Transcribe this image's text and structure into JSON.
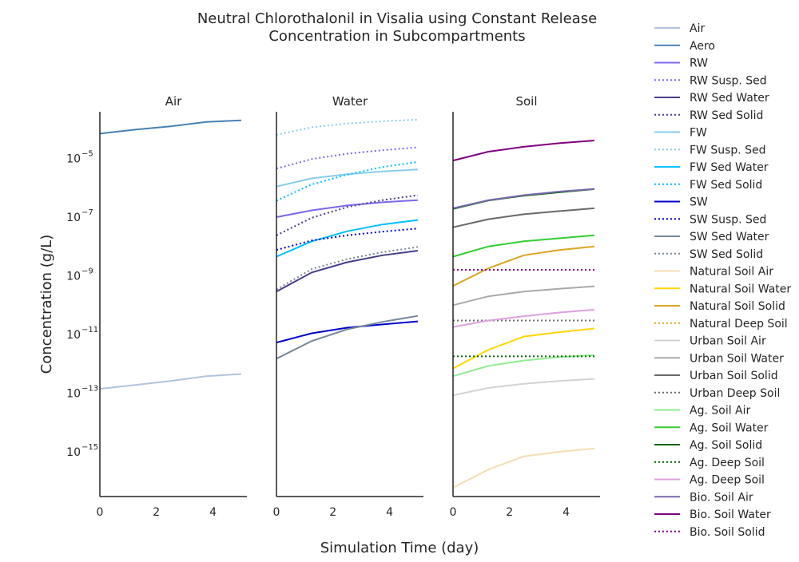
{
  "chart_data": {
    "type": "line",
    "title": "Neutral Chlorothalonil in Visalia using Constant Release\nConcentration in Subcompartments",
    "xlabel": "Simulation Time (day)",
    "ylabel": "Concentration (g/L)",
    "yscale": "log",
    "ylim": [
      3e-17,
      0.00039
    ],
    "xlim": [
      0,
      5.2
    ],
    "xticks": [
      0,
      2,
      4
    ],
    "yticks": [
      {
        "value": 1e-05,
        "base": "10",
        "exp": "−5"
      },
      {
        "value": 1e-07,
        "base": "10",
        "exp": "−7"
      },
      {
        "value": 1e-09,
        "base": "10",
        "exp": "−9"
      },
      {
        "value": 1e-11,
        "base": "10",
        "exp": "−11"
      },
      {
        "value": 1e-13,
        "base": "10",
        "exp": "−13"
      },
      {
        "value": 1e-15,
        "base": "10",
        "exp": "−15"
      }
    ],
    "x": [
      0,
      1.25,
      2.5,
      3.75,
      5
    ],
    "panels": [
      {
        "title": "Air",
        "series": [
          {
            "name": "Air",
            "color": "#b0c4de",
            "dash": "solid",
            "values": [
              1.4e-13,
              1.9e-13,
              2.6e-13,
              3.8e-13,
              4.5e-13
            ]
          },
          {
            "name": "Aero",
            "color": "#4682b4",
            "dash": "solid",
            "values": [
              7e-05,
              9.6e-05,
              0.000125,
              0.000175,
              0.0002
            ]
          }
        ]
      },
      {
        "title": "Water",
        "series": [
          {
            "name": "RW",
            "color": "#7b68ee",
            "dash": "solid",
            "values": [
              1e-07,
              1.7e-07,
              2.5e-07,
              3.2e-07,
              3.8e-07
            ]
          },
          {
            "name": "RW Susp. Sed",
            "color": "#7b68ee",
            "dash": "dot",
            "values": [
              4.5e-06,
              9.5e-06,
              1.45e-05,
              1.9e-05,
              2.4e-05
            ]
          },
          {
            "name": "RW Sed Water",
            "color": "#483d8b",
            "dash": "solid",
            "values": [
              2.9e-10,
              1.3e-09,
              2.9e-09,
              5e-09,
              7.2e-09
            ]
          },
          {
            "name": "RW Sed Solid",
            "color": "#483d8b",
            "dash": "dot",
            "values": [
              2.4e-08,
              9.5e-08,
              2.2e-07,
              3.8e-07,
              5.6e-07
            ]
          },
          {
            "name": "FW",
            "color": "#87ceeb",
            "dash": "solid",
            "values": [
              1.1e-06,
              2.1e-06,
              2.9e-06,
              3.6e-06,
              4.2e-06
            ]
          },
          {
            "name": "FW Susp. Sed",
            "color": "#87ceeb",
            "dash": "dot",
            "values": [
              6.4e-05,
              0.000115,
              0.000155,
              0.000185,
              0.00021
            ]
          },
          {
            "name": "FW Sed Water",
            "color": "#00bfff",
            "dash": "solid",
            "values": [
              4.5e-09,
              1.5e-08,
              3.3e-08,
              5.6e-08,
              8e-08
            ]
          },
          {
            "name": "FW Sed Solid",
            "color": "#00bfff",
            "dash": "dot",
            "values": [
              3.6e-07,
              1.3e-06,
              2.8e-06,
              5.1e-06,
              7.6e-06
            ]
          },
          {
            "name": "SW",
            "color": "#0000cd",
            "dash": "solid",
            "values": [
              5.3e-12,
              1.1e-11,
              1.7e-11,
              2.2e-11,
              2.8e-11
            ]
          },
          {
            "name": "SW Susp. Sed",
            "color": "#0000cd",
            "dash": "dot",
            "values": [
              7.6e-09,
              1.6e-08,
              2.4e-08,
              3.2e-08,
              4.1e-08
            ]
          },
          {
            "name": "SW Sed Water",
            "color": "#778899",
            "dash": "solid",
            "values": [
              1.5e-12,
              6e-12,
              1.5e-11,
              2.7e-11,
              4.3e-11
            ]
          },
          {
            "name": "SW Sed Solid",
            "color": "#778899",
            "dash": "dot",
            "values": [
              3.4e-10,
              1.7e-09,
              3.7e-09,
              6.4e-09,
              9.6e-09
            ]
          }
        ]
      },
      {
        "title": "Soil",
        "series": [
          {
            "name": "Natural Soil Air",
            "color": "#f5deb3",
            "dash": "solid",
            "values": [
              6e-17,
              2.5e-16,
              7e-16,
              1e-15,
              1.3e-15
            ]
          },
          {
            "name": "Natural Soil Water",
            "color": "#ffd700",
            "dash": "solid",
            "values": [
              7e-13,
              3e-12,
              8.5e-12,
              1.2e-11,
              1.6e-11
            ]
          },
          {
            "name": "Natural Soil Solid",
            "color": "#daa520",
            "dash": "solid",
            "values": [
              4.5e-10,
              1.8e-09,
              5e-09,
              7.5e-09,
              1e-08
            ]
          },
          {
            "name": "Natural Deep Soil",
            "color": "#daa520",
            "dash": "dot",
            "values": [
              1.6e-09,
              1.6e-09,
              1.6e-09,
              1.6e-09,
              1.6e-09
            ]
          },
          {
            "name": "Urban Soil Air",
            "color": "#d3d3d3",
            "dash": "solid",
            "values": [
              8.5e-14,
              1.5e-13,
              2.1e-13,
              2.6e-13,
              3.1e-13
            ]
          },
          {
            "name": "Urban Soil Water",
            "color": "#a9a9a9",
            "dash": "solid",
            "values": [
              1e-10,
              2e-10,
              2.9e-10,
              3.6e-10,
              4.4e-10
            ]
          },
          {
            "name": "Urban Soil Solid",
            "color": "#696969",
            "dash": "solid",
            "values": [
              4.5e-08,
              8.5e-08,
              1.25e-07,
              1.6e-07,
              2e-07
            ]
          },
          {
            "name": "Urban Deep Soil",
            "color": "#696969",
            "dash": "dot",
            "values": [
              3e-11,
              3e-11,
              3e-11,
              3e-11,
              3e-11
            ]
          },
          {
            "name": "Ag. Soil Air",
            "color": "#90ee90",
            "dash": "solid",
            "values": [
              3.8e-13,
              8.5e-13,
              1.3e-12,
              1.7e-12,
              2e-12
            ]
          },
          {
            "name": "Ag. Soil Water",
            "color": "#32cd32",
            "dash": "solid",
            "values": [
              4.5e-09,
              1e-08,
              1.5e-08,
              1.9e-08,
              2.4e-08
            ]
          },
          {
            "name": "Ag. Soil Solid",
            "color": "#006400",
            "dash": "solid",
            "values": [
              1.9e-07,
              3.7e-07,
              5.4e-07,
              7e-07,
              9e-07
            ]
          },
          {
            "name": "Ag. Deep Soil",
            "color": "#006400",
            "dash": "dot",
            "values": [
              1.8e-12,
              1.8e-12,
              1.8e-12,
              1.8e-12,
              1.8e-12
            ]
          },
          {
            "name": "Ag. Deep Soil",
            "color": "#dda0dd",
            "dash": "solid",
            "values": [
              1.8e-11,
              3e-11,
              4.2e-11,
              5.6e-11,
              7e-11
            ]
          },
          {
            "name": "Bio. Soil Air",
            "color": "#7b68b3",
            "dash": "solid",
            "values": [
              2e-07,
              3.8e-07,
              5.6e-07,
              7.4e-07,
              9.2e-07
            ]
          },
          {
            "name": "Bio. Soil Water",
            "color": "#800080",
            "dash": "solid",
            "values": [
              8.5e-06,
              1.7e-05,
              2.5e-05,
              3.3e-05,
              4.1e-05
            ]
          },
          {
            "name": "Bio. Soil Solid",
            "color": "#800080",
            "dash": "dot",
            "values": [
              1.6e-09,
              1.6e-09,
              1.6e-09,
              1.6e-09,
              1.6e-09
            ]
          }
        ]
      }
    ]
  }
}
